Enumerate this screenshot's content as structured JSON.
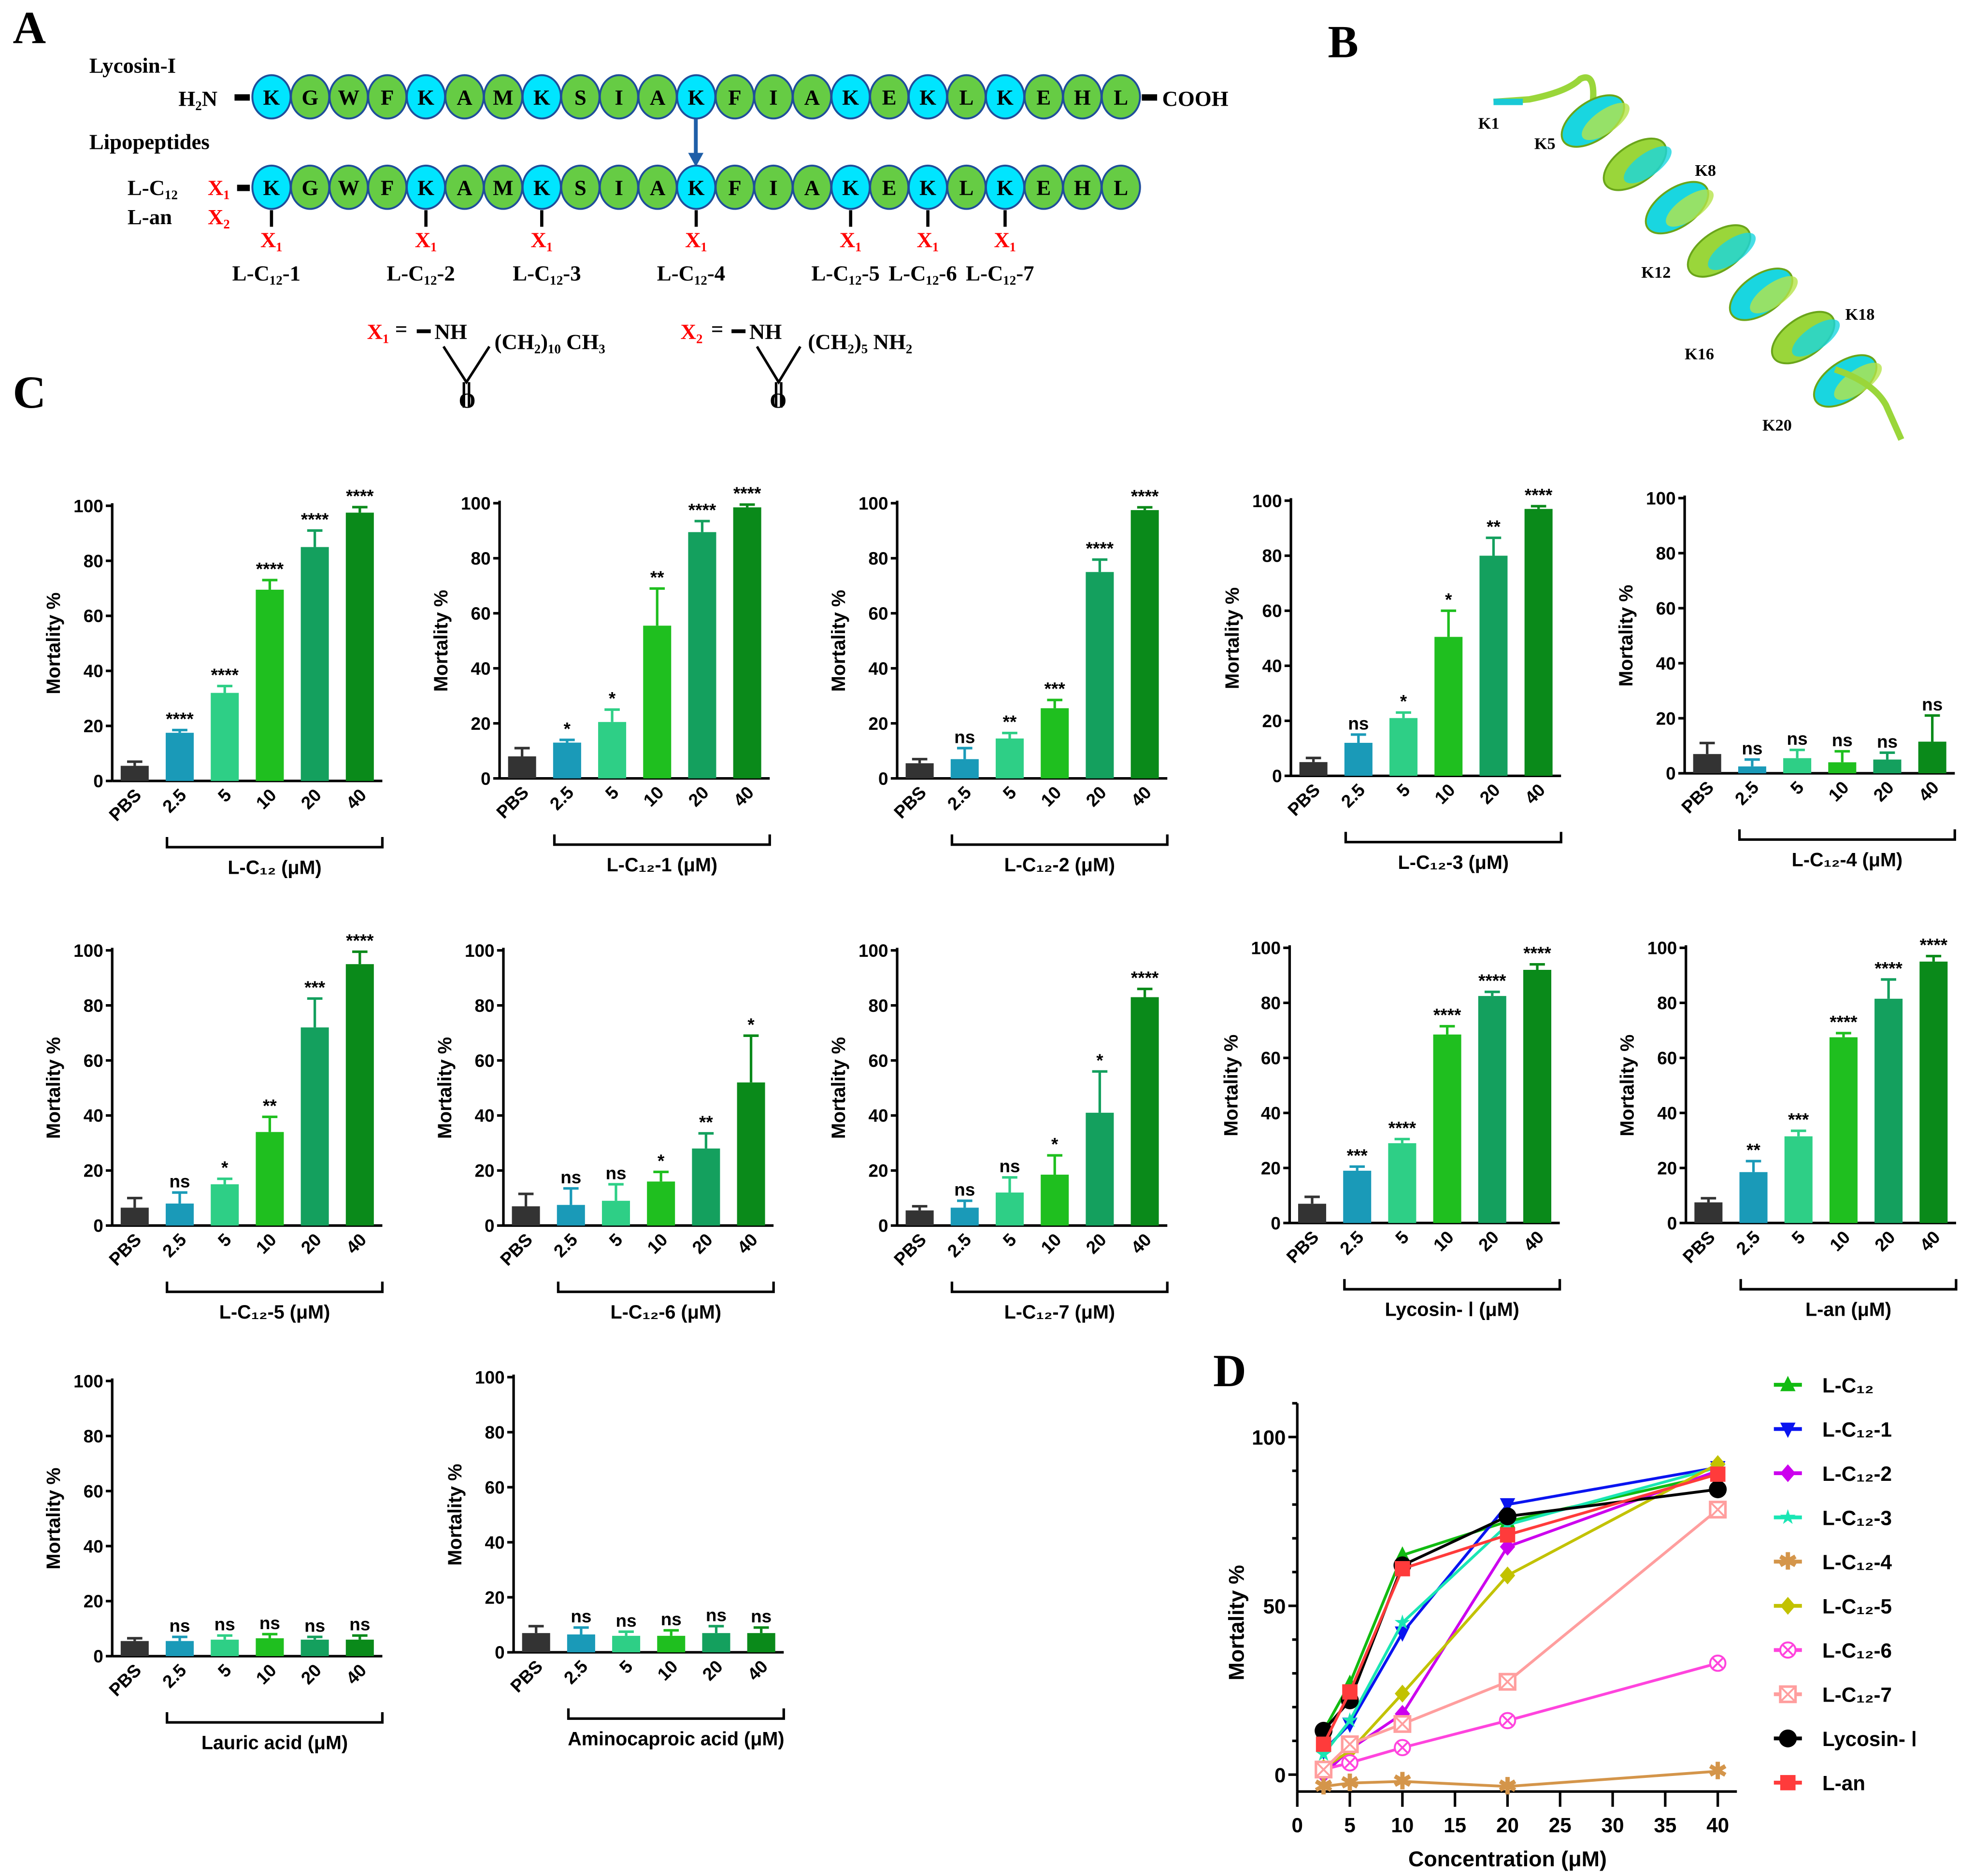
{
  "panels": {
    "a": "A",
    "b": "B",
    "c": "C",
    "d": "D"
  },
  "panel_a": {
    "parent_label": "Lycosin-I",
    "lipo_label": "Lipopeptides",
    "n_term": "H₂N",
    "c_term": "COOH",
    "sequence": [
      "K",
      "G",
      "W",
      "F",
      "K",
      "A",
      "M",
      "K",
      "S",
      "I",
      "A",
      "K",
      "F",
      "I",
      "A",
      "K",
      "E",
      "K",
      "L",
      "K",
      "E",
      "H",
      "L"
    ],
    "colors": {
      "lysine": "#00e5ff",
      "other": "#66cc44",
      "outline": "#1f4e9a",
      "arrow": "#1f5fa8",
      "x": "#ff0000"
    },
    "row_labels": [
      "L-C₁₂",
      "L-an"
    ],
    "row_x": [
      "X₁",
      "X₂"
    ],
    "mod_sites": [
      {
        "residue": 1,
        "x": "X₁",
        "name": "L-C₁₂-1"
      },
      {
        "residue": 5,
        "x": "X₁",
        "name": "L-C₁₂-2"
      },
      {
        "residue": 8,
        "x": "X₁",
        "name": "L-C₁₂-3"
      },
      {
        "residue": 12,
        "x": "X₁",
        "name": "L-C₁₂-4"
      },
      {
        "residue": 16,
        "x": "X₁",
        "name": "L-C₁₂-5"
      },
      {
        "residue": 18,
        "x": "X₁",
        "name": "L-C₁₂-6"
      },
      {
        "residue": 20,
        "x": "X₁",
        "name": "L-C₁₂-7"
      }
    ],
    "x1_def": {
      "x": "X₁",
      "eq": "=",
      "nh": "NH",
      "chain": "(CH₂)₁₀ CH₃",
      "o": "O"
    },
    "x2_def": {
      "x": "X₂",
      "eq": "=",
      "nh": "NH",
      "chain": "(CH₂)₅ NH₂",
      "o": "O"
    }
  },
  "panel_b": {
    "labels": [
      "K1",
      "K5",
      "K8",
      "K12",
      "K16",
      "K18",
      "K20"
    ]
  },
  "chart_data": [
    {
      "type": "bar",
      "ylabel": "Mortality %",
      "xlabel": "L-C₁₂ (μM)",
      "ylim": [
        0,
        100
      ],
      "categories": [
        "PBS",
        "2.5",
        "5",
        "10",
        "20",
        "40"
      ],
      "values": [
        5.5,
        17.5,
        32,
        69.5,
        85,
        97.5
      ],
      "errors": [
        1.5,
        1,
        2.5,
        3.5,
        6,
        2
      ],
      "significance": [
        "",
        "****",
        "****",
        "****",
        "****",
        "****"
      ]
    },
    {
      "type": "bar",
      "ylabel": "Mortality %",
      "xlabel": "L-C₁₂-1 (μM)",
      "ylim": [
        0,
        100
      ],
      "categories": [
        "PBS",
        "2.5",
        "5",
        "10",
        "20",
        "40"
      ],
      "values": [
        8,
        13,
        20.5,
        55.5,
        89.5,
        98.5
      ],
      "errors": [
        3,
        1,
        4.5,
        13.5,
        4,
        1
      ],
      "significance": [
        "",
        "*",
        "*",
        "**",
        "****",
        "****"
      ]
    },
    {
      "type": "bar",
      "ylabel": "Mortality %",
      "xlabel": "L-C₁₂-2 (μM)",
      "ylim": [
        0,
        100
      ],
      "categories": [
        "PBS",
        "2.5",
        "5",
        "10",
        "20",
        "40"
      ],
      "values": [
        5.5,
        7,
        14.5,
        25.5,
        75,
        97.5
      ],
      "errors": [
        1.5,
        4,
        2,
        3,
        4.5,
        1
      ],
      "significance": [
        "",
        "ns",
        "**",
        "***",
        "****",
        "****"
      ]
    },
    {
      "type": "bar",
      "ylabel": "Mortality %",
      "xlabel": "L-C₁₂-3 (μM)",
      "ylim": [
        0,
        100
      ],
      "categories": [
        "PBS",
        "2.5",
        "5",
        "10",
        "20",
        "40"
      ],
      "values": [
        5,
        12,
        21,
        50.5,
        80,
        97
      ],
      "errors": [
        1.5,
        3,
        2,
        9.5,
        6.5,
        1
      ],
      "significance": [
        "",
        "ns",
        "*",
        "*",
        "**",
        "****"
      ]
    },
    {
      "type": "bar",
      "ylabel": "Mortality %",
      "xlabel": "L-C₁₂-4 (μM)",
      "ylim": [
        0,
        100
      ],
      "categories": [
        "PBS",
        "2.5",
        "5",
        "10",
        "20",
        "40"
      ],
      "values": [
        7,
        2.5,
        5.5,
        4,
        5,
        11.5
      ],
      "errors": [
        4,
        2.5,
        3,
        4,
        2.5,
        9.5
      ],
      "significance": [
        "",
        "ns",
        "ns",
        "ns",
        "ns",
        "ns"
      ]
    },
    {
      "type": "bar",
      "ylabel": "Mortality %",
      "xlabel": "L-C₁₂-5 (μM)",
      "ylim": [
        0,
        100
      ],
      "categories": [
        "PBS",
        "2.5",
        "5",
        "10",
        "20",
        "40"
      ],
      "values": [
        6.5,
        8,
        15,
        34,
        72,
        95
      ],
      "errors": [
        3.5,
        4,
        2,
        5.5,
        10.5,
        4.5
      ],
      "significance": [
        "",
        "ns",
        "*",
        "**",
        "***",
        "****"
      ]
    },
    {
      "type": "bar",
      "ylabel": "Mortality %",
      "xlabel": "L-C₁₂-6 (μM)",
      "ylim": [
        0,
        100
      ],
      "categories": [
        "PBS",
        "2.5",
        "5",
        "10",
        "20",
        "40"
      ],
      "values": [
        7,
        7.5,
        9,
        16,
        28,
        52
      ],
      "errors": [
        4.5,
        6,
        6,
        3.5,
        5.5,
        17
      ],
      "significance": [
        "",
        "ns",
        "ns",
        "*",
        "**",
        "*"
      ]
    },
    {
      "type": "bar",
      "ylabel": "Mortality %",
      "xlabel": "L-C₁₂-7 (μM)",
      "ylim": [
        0,
        100
      ],
      "categories": [
        "PBS",
        "2.5",
        "5",
        "10",
        "20",
        "40"
      ],
      "values": [
        5.5,
        6.5,
        12,
        18.5,
        41,
        83
      ],
      "errors": [
        1.5,
        2.5,
        5.5,
        7,
        15,
        3
      ],
      "significance": [
        "",
        "ns",
        "ns",
        "*",
        "*",
        "****"
      ]
    },
    {
      "type": "bar",
      "ylabel": "Mortality %",
      "xlabel": "Lycosin- Ⅰ (μM)",
      "ylim": [
        0,
        100
      ],
      "categories": [
        "PBS",
        "2.5",
        "5",
        "10",
        "20",
        "40"
      ],
      "values": [
        7,
        19,
        29,
        68.5,
        82.5,
        92
      ],
      "errors": [
        2.5,
        1.5,
        1.5,
        3,
        1.5,
        2
      ],
      "significance": [
        "",
        "***",
        "****",
        "****",
        "****",
        "****"
      ]
    },
    {
      "type": "bar",
      "ylabel": "Mortality %",
      "xlabel": "L-an (μM)",
      "ylim": [
        0,
        100
      ],
      "categories": [
        "PBS",
        "2.5",
        "5",
        "10",
        "20",
        "40"
      ],
      "values": [
        7.5,
        18.5,
        31.5,
        67.5,
        81.5,
        95
      ],
      "errors": [
        1.5,
        4,
        2,
        1.5,
        7,
        2
      ],
      "significance": [
        "",
        "**",
        "***",
        "****",
        "****",
        "****"
      ]
    },
    {
      "type": "bar",
      "ylabel": "Mortality %",
      "xlabel": "Lauric acid (μM)",
      "ylim": [
        0,
        100
      ],
      "categories": [
        "PBS",
        "2.5",
        "5",
        "10",
        "20",
        "40"
      ],
      "values": [
        5.5,
        5.5,
        6,
        6.5,
        6,
        6
      ],
      "errors": [
        1,
        1.5,
        1.5,
        1.5,
        1,
        1.5
      ],
      "significance": [
        "",
        "ns",
        "ns",
        "ns",
        "ns",
        "ns"
      ]
    },
    {
      "type": "bar",
      "ylabel": "Mortality %",
      "xlabel": "Aminocaproic acid  (μM)",
      "ylim": [
        0,
        100
      ],
      "categories": [
        "PBS",
        "2.5",
        "5",
        "10",
        "20",
        "40"
      ],
      "values": [
        7,
        6.5,
        6,
        6,
        7,
        7
      ],
      "errors": [
        2.5,
        2.5,
        1.5,
        2,
        2.5,
        2
      ],
      "significance": [
        "",
        "ns",
        "ns",
        "ns",
        "ns",
        "ns"
      ]
    },
    {
      "type": "line",
      "xlabel": "Concentration (μM)",
      "ylabel": "Mortality %",
      "xlim": [
        0,
        40
      ],
      "ylim": [
        -5,
        110
      ],
      "xticks": [
        0,
        5,
        10,
        15,
        20,
        25,
        30,
        35,
        40
      ],
      "yticks": [
        0,
        50,
        100
      ],
      "legend": "right",
      "x": [
        2.5,
        5,
        10,
        20,
        40
      ],
      "series": [
        {
          "name": "L-C₁₂",
          "color": "#11bb11",
          "marker": "triangle-up",
          "values": [
            13,
            27,
            65,
            75,
            89
          ]
        },
        {
          "name": "L-C₁₂-1",
          "color": "#0a14f0",
          "marker": "triangle-down",
          "values": [
            7,
            15,
            42,
            80,
            91
          ]
        },
        {
          "name": "L-C₁₂-2",
          "color": "#cc00ee",
          "marker": "diamond",
          "values": [
            0,
            7.5,
            18,
            67.5,
            90
          ]
        },
        {
          "name": "L-C₁₂-3",
          "color": "#19e6b4",
          "marker": "star",
          "values": [
            6,
            16,
            45,
            74,
            91
          ]
        },
        {
          "name": "L-C₁₂-4",
          "color": "#d4954a",
          "marker": "asterisk",
          "values": [
            -3.5,
            -2.5,
            -2,
            -3.5,
            1
          ]
        },
        {
          "name": "L-C₁₂-5",
          "color": "#c2c200",
          "marker": "diamond",
          "values": [
            2,
            7,
            24,
            59,
            92
          ]
        },
        {
          "name": "L-C₁₂-6",
          "color": "#ff44dd",
          "marker": "circle-x",
          "values": [
            1.5,
            3.5,
            8,
            16,
            33
          ]
        },
        {
          "name": "L-C₁₂-7",
          "color": "#ff9e9e",
          "marker": "square-x",
          "values": [
            1.5,
            9,
            15,
            27.5,
            78.5
          ]
        },
        {
          "name": "Lycosin- Ⅰ",
          "color": "#000000",
          "marker": "circle",
          "values": [
            13,
            22,
            62,
            76.5,
            84.5
          ]
        },
        {
          "name": "L-an",
          "color": "#ff3b3b",
          "marker": "square",
          "values": [
            9,
            24.5,
            61,
            71,
            89
          ]
        }
      ]
    }
  ],
  "bar_colors": [
    "#333333",
    "#1a9ab8",
    "#2ecf86",
    "#1fbf1f",
    "#14a05e",
    "#0a8a1a"
  ]
}
